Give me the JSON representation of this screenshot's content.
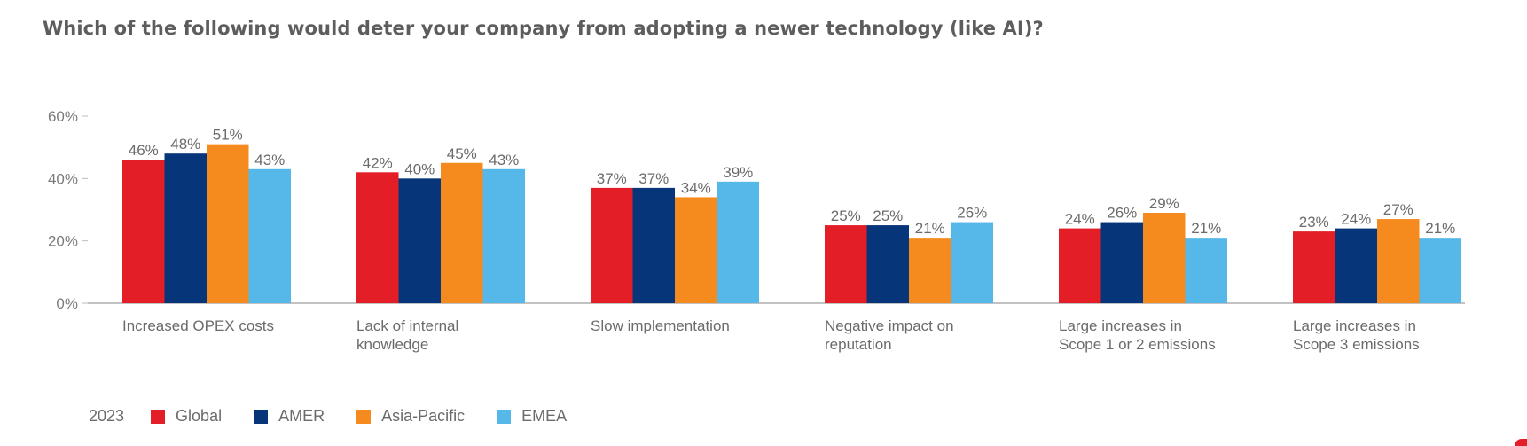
{
  "title": "Which of the following would deter your company from adopting a newer technology (like AI)?",
  "legend": {
    "year": "2023"
  },
  "chart_data": {
    "type": "bar",
    "title": "Which of the following would deter your company from adopting a newer technology (like AI)?",
    "categories": [
      [
        "Increased OPEX costs"
      ],
      [
        "Lack of internal",
        "knowledge"
      ],
      [
        "Slow implementation"
      ],
      [
        "Negative impact on",
        "reputation"
      ],
      [
        "Large increases in",
        "Scope 1 or 2 emissions"
      ],
      [
        "Large increases in",
        "Scope 3 emissions"
      ]
    ],
    "series": [
      {
        "name": "Global",
        "color": "#e31e26",
        "values": [
          46,
          42,
          37,
          25,
          24,
          23
        ]
      },
      {
        "name": "AMER",
        "color": "#06357a",
        "values": [
          48,
          40,
          37,
          25,
          26,
          24
        ]
      },
      {
        "name": "Asia-Pacific",
        "color": "#f58b1f",
        "values": [
          51,
          45,
          34,
          21,
          29,
          27
        ]
      },
      {
        "name": "EMEA",
        "color": "#55b8e8",
        "values": [
          43,
          43,
          39,
          26,
          21,
          21
        ]
      }
    ],
    "ylim": [
      0,
      60
    ],
    "yticks": [
      0,
      20,
      40,
      60
    ],
    "ytick_labels": [
      "0%",
      "20%",
      "40%",
      "60%"
    ],
    "value_suffix": "%",
    "legend_position": "bottom-left",
    "grid": false
  }
}
